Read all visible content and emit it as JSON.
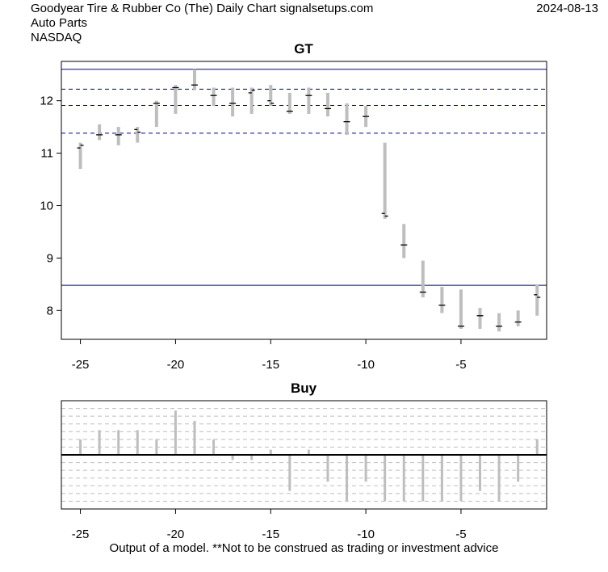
{
  "header": {
    "title": "Goodyear Tire & Rubber Co (The) Daily Chart signalsetups.com",
    "industry": "Auto Parts",
    "exchange": "NASDAQ",
    "date": "2024-08-13"
  },
  "footer": "Output of a model. **Not to be construed as trading or investment advice",
  "colors": {
    "bar": "#bebebe",
    "hline": "#00008b",
    "zero": "#000000",
    "grid": "#bebebe"
  },
  "chart_data": [
    {
      "type": "candlestick",
      "title": "GT",
      "xlim": [
        -26,
        -0.5
      ],
      "ylim": [
        7.45,
        12.75
      ],
      "xticks": [
        -25,
        -20,
        -15,
        -10,
        -5
      ],
      "yticks": [
        8,
        9,
        10,
        11,
        12
      ],
      "hlines_solid": [
        12.6,
        8.48
      ],
      "hlines_dashed": [
        12.22,
        11.91,
        11.38
      ],
      "x": [
        -25,
        -24,
        -23,
        -22,
        -21,
        -20,
        -19,
        -18,
        -17,
        -16,
        -15,
        -14,
        -13,
        -12,
        -11,
        -10,
        -9,
        -8,
        -7,
        -6,
        -5,
        -4,
        -3,
        -2,
        -1
      ],
      "high": [
        11.2,
        11.55,
        11.5,
        11.5,
        12.0,
        12.3,
        12.6,
        12.25,
        12.25,
        12.25,
        12.3,
        12.15,
        12.25,
        12.15,
        11.95,
        11.9,
        11.2,
        9.65,
        8.95,
        8.45,
        8.4,
        8.05,
        7.95,
        8.0,
        8.5
      ],
      "low": [
        10.7,
        11.25,
        11.15,
        11.2,
        11.5,
        11.75,
        12.2,
        11.9,
        11.7,
        11.75,
        11.9,
        11.75,
        11.75,
        11.7,
        11.35,
        11.5,
        9.75,
        9.0,
        8.25,
        7.95,
        7.65,
        7.65,
        7.6,
        7.7,
        7.9
      ],
      "open": [
        11.1,
        11.35,
        11.35,
        11.45,
        11.95,
        12.25,
        12.3,
        12.1,
        11.95,
        12.15,
        12.0,
        11.8,
        12.1,
        11.85,
        11.6,
        11.7,
        9.85,
        9.25,
        8.35,
        8.1,
        7.7,
        7.9,
        7.7,
        7.78,
        8.3
      ],
      "close": [
        11.15,
        11.35,
        11.35,
        11.4,
        11.95,
        12.25,
        12.3,
        12.1,
        11.95,
        12.2,
        11.95,
        11.8,
        12.1,
        11.85,
        11.6,
        11.7,
        9.8,
        9.25,
        8.35,
        8.1,
        7.7,
        7.9,
        7.7,
        7.78,
        8.25
      ]
    },
    {
      "type": "bar",
      "title": "Buy",
      "xlim": [
        -26,
        -0.5
      ],
      "ylim": [
        -1.05,
        1.05
      ],
      "xticks": [
        -25,
        -20,
        -15,
        -10,
        -5
      ],
      "gridlines": [
        -0.9,
        -0.75,
        -0.6,
        -0.45,
        -0.3,
        -0.15,
        0.15,
        0.3,
        0.45,
        0.6,
        0.75,
        0.9
      ],
      "x": [
        -25,
        -24,
        -23,
        -22,
        -21,
        -20,
        -19,
        -18,
        -17,
        -16,
        -15,
        -14,
        -13,
        -12,
        -11,
        -10,
        -9,
        -8,
        -7,
        -6,
        -5,
        -4,
        -3,
        -2,
        -1
      ],
      "values": [
        0.3,
        0.48,
        0.48,
        0.48,
        0.3,
        0.86,
        0.66,
        0.3,
        -0.1,
        -0.1,
        0.1,
        -0.7,
        0.1,
        -0.52,
        -0.9,
        -0.52,
        -0.9,
        -0.9,
        -0.9,
        -0.9,
        -0.9,
        -0.7,
        -0.9,
        -0.52,
        0.3
      ]
    }
  ]
}
